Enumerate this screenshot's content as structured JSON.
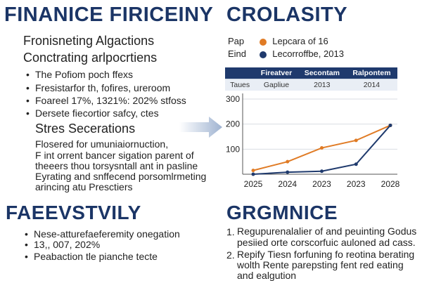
{
  "left": {
    "title": "FINANICE FIRICEINY",
    "subtitle1": "Fronisneting Algactions",
    "subtitle2": "Conctrating arlpocrtiens",
    "bullets": [
      "The Pofiom poch ffexs",
      "Fresistarfor th, fofires, ureroom",
      "Foareel 17%, 1321%: 202% stfoss",
      "Dersete fiecortior safcy, ctes"
    ],
    "section_heading": "Stres Secerations",
    "paragraph": [
      "Flosered for umuniaiornuction,",
      "F int orrent bancer sigation parent of",
      "theeers thou torsysntall ant in pasline",
      "Eyrating and snffecend porsomlrmeting",
      "arincing atu Presctiers"
    ]
  },
  "left_bottom": {
    "title": "FAEEVSTVILY",
    "bullets": [
      "Nese-atturefaeferemity onegation",
      "Peabaction tle pianche tecte"
    ],
    "bullet1_cont": "13,, 007, 202%"
  },
  "right": {
    "title": "CROLASITY",
    "legend": [
      {
        "key": "Pap",
        "label": "Lepcara of 16",
        "color": "#e07b25"
      },
      {
        "key": "Eind",
        "label": "Lecorroffbe, 2013",
        "color": "#1f3a6d"
      }
    ],
    "table": {
      "headers": [
        "",
        "Fireatver",
        "Secontam",
        "Ralpontem"
      ],
      "row": [
        "Taues",
        "Gapliue",
        "2013",
        "2014"
      ]
    }
  },
  "right_bottom": {
    "title": "GRGMNICE",
    "items": [
      {
        "num": "1.",
        "lines": [
          "Regupurenalalier of and peuinting Godus",
          "pesiied orte corscorfuic auloned ad cass."
        ]
      },
      {
        "num": "2.",
        "lines": [
          "Repify Tiesn forfuning fo reotina berating",
          "wolth  Rente parepsting fent red eating",
          "and ealgution"
        ]
      }
    ]
  },
  "colors": {
    "navy": "#1b3566",
    "orange": "#e07b25",
    "arrow": "#a9bbd4"
  },
  "chart_data": {
    "type": "line",
    "categories": [
      "2025",
      "2024",
      "2023",
      "2023",
      "2028"
    ],
    "series": [
      {
        "values": [
          15,
          50,
          105,
          135,
          195
        ],
        "color": "#e07b25"
      },
      {
        "values": [
          0,
          8,
          12,
          40,
          195
        ],
        "color": "#1f3a6d"
      }
    ],
    "y_ticks": [
      100,
      200,
      300
    ],
    "xlabel": "",
    "ylabel": "",
    "grid": true
  }
}
